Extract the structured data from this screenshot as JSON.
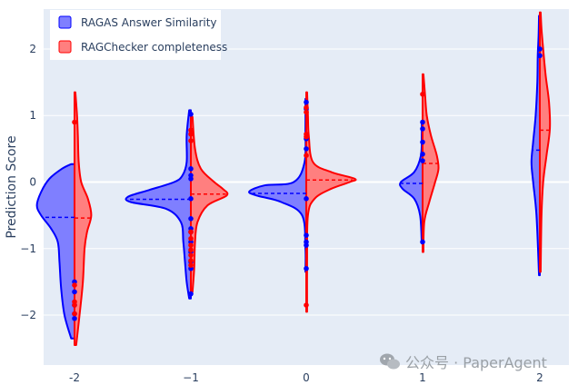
{
  "chart_data": {
    "type": "violin",
    "ylabel": "Prediction Score",
    "ylim": [
      -2.75,
      2.6
    ],
    "x_categories": [
      "-2",
      "−1",
      "0",
      "1",
      "2"
    ],
    "y_ticks": [
      "−2",
      "−1",
      "0",
      "1",
      "2"
    ],
    "y_tick_values": [
      -2,
      -1,
      0,
      1,
      2
    ],
    "grid": true,
    "legend_position": "top-left",
    "colors": {
      "plot_bg": "#e5ecf6",
      "grid": "#ffffff",
      "ragas_line": "#0000ff",
      "ragas_fill": "#7f7fff",
      "ragchecker_line": "#ff0000",
      "ragchecker_fill": "#ff7f7f"
    },
    "series": [
      {
        "name": "RAGAS Answer Similarity",
        "side": "negative",
        "groups": [
          {
            "x": -2,
            "mean": -0.53,
            "range": [
              -2.35,
              0.27
            ],
            "density": [
              [
                -2.35,
                0.04
              ],
              [
                -2.0,
                0.12
              ],
              [
                -1.6,
                0.16
              ],
              [
                -1.2,
                0.18
              ],
              [
                -0.9,
                0.2
              ],
              [
                -0.7,
                0.28
              ],
              [
                -0.5,
                0.4
              ],
              [
                -0.35,
                0.45
              ],
              [
                -0.15,
                0.4
              ],
              [
                0.05,
                0.3
              ],
              [
                0.2,
                0.15
              ],
              [
                0.27,
                0.04
              ]
            ],
            "points": [
              -1.5,
              -1.65,
              -1.85,
              -1.98,
              -2.05
            ]
          },
          {
            "x": -1,
            "mean": -0.26,
            "range": [
              -1.75,
              1.08
            ],
            "density": [
              [
                -1.75,
                0.02
              ],
              [
                -1.5,
                0.05
              ],
              [
                -1.2,
                0.07
              ],
              [
                -0.9,
                0.09
              ],
              [
                -0.6,
                0.12
              ],
              [
                -0.4,
                0.3
              ],
              [
                -0.3,
                0.72
              ],
              [
                -0.22,
                0.75
              ],
              [
                -0.12,
                0.5
              ],
              [
                0.0,
                0.2
              ],
              [
                0.1,
                0.1
              ],
              [
                0.3,
                0.05
              ],
              [
                0.7,
                0.05
              ],
              [
                1.08,
                0.02
              ]
            ],
            "points": [
              1.02,
              0.2,
              0.1,
              0.05,
              -0.25,
              -0.55,
              -0.7,
              -0.75,
              -0.9,
              -1.05,
              -1.2,
              -1.3,
              -1.68
            ]
          },
          {
            "x": 0,
            "mean": -0.17,
            "range": [
              -1.35,
              1.25
            ],
            "density": [
              [
                -1.35,
                0.01
              ],
              [
                -1.0,
                0.01
              ],
              [
                -0.5,
                0.05
              ],
              [
                -0.3,
                0.3
              ],
              [
                -0.2,
                0.6
              ],
              [
                -0.14,
                0.68
              ],
              [
                -0.05,
                0.5
              ],
              [
                0.0,
                0.15
              ],
              [
                0.3,
                0.02
              ],
              [
                0.8,
                0.01
              ],
              [
                1.25,
                0.01
              ]
            ],
            "points": [
              1.2,
              1.1,
              0.65,
              0.5,
              -0.25,
              -0.8,
              -0.9,
              -0.95,
              -1.3
            ]
          },
          {
            "x": 1,
            "mean": -0.02,
            "range": [
              -0.92,
              0.92
            ],
            "density": [
              [
                -0.92,
                0.01
              ],
              [
                -0.5,
                0.03
              ],
              [
                -0.25,
                0.1
              ],
              [
                -0.1,
                0.24
              ],
              [
                0.0,
                0.26
              ],
              [
                0.15,
                0.1
              ],
              [
                0.4,
                0.02
              ],
              [
                0.7,
                0.01
              ],
              [
                0.92,
                0.01
              ]
            ],
            "points": [
              0.9,
              0.8,
              0.6,
              0.42,
              0.32,
              -0.9
            ]
          },
          {
            "x": 2,
            "mean": 0.48,
            "range": [
              -1.4,
              2.5
            ],
            "density": [
              [
                -1.4,
                0.01
              ],
              [
                -0.5,
                0.04
              ],
              [
                0.0,
                0.08
              ],
              [
                0.3,
                0.1
              ],
              [
                0.6,
                0.08
              ],
              [
                1.0,
                0.05
              ],
              [
                1.5,
                0.03
              ],
              [
                1.9,
                0.025
              ],
              [
                2.2,
                0.015
              ],
              [
                2.5,
                0.01
              ]
            ],
            "points": [
              2.0,
              1.9
            ]
          }
        ]
      },
      {
        "name": "RAGChecker completeness",
        "side": "positive",
        "groups": [
          {
            "x": -2,
            "mean": -0.54,
            "range": [
              -2.45,
              1.35
            ],
            "density": [
              [
                -2.45,
                0.02
              ],
              [
                -2.0,
                0.06
              ],
              [
                -1.5,
                0.1
              ],
              [
                -1.0,
                0.12
              ],
              [
                -0.75,
                0.15
              ],
              [
                -0.5,
                0.2
              ],
              [
                -0.25,
                0.16
              ],
              [
                0.0,
                0.08
              ],
              [
                0.3,
                0.05
              ],
              [
                0.7,
                0.04
              ],
              [
                1.0,
                0.03
              ],
              [
                1.35,
                0.01
              ]
            ],
            "points": [
              0.9,
              -1.55,
              -1.8,
              -1.85,
              -1.98
            ]
          },
          {
            "x": -1,
            "mean": -0.18,
            "range": [
              -1.65,
              0.98
            ],
            "density": [
              [
                -1.65,
                0.02
              ],
              [
                -1.3,
                0.04
              ],
              [
                -0.9,
                0.05
              ],
              [
                -0.6,
                0.08
              ],
              [
                -0.35,
                0.2
              ],
              [
                -0.2,
                0.43
              ],
              [
                -0.1,
                0.38
              ],
              [
                0.0,
                0.28
              ],
              [
                0.2,
                0.12
              ],
              [
                0.5,
                0.05
              ],
              [
                0.98,
                0.02
              ]
            ],
            "points": [
              0.78,
              0.72,
              0.62,
              -0.75,
              -0.85,
              -0.95,
              -1.02,
              -1.1,
              -1.18,
              -1.25
            ]
          },
          {
            "x": 0,
            "mean": 0.03,
            "range": [
              -1.95,
              1.35
            ],
            "density": [
              [
                -1.95,
                0.01
              ],
              [
                -1.2,
                0.01
              ],
              [
                -0.5,
                0.02
              ],
              [
                -0.25,
                0.1
              ],
              [
                -0.1,
                0.3
              ],
              [
                0.0,
                0.52
              ],
              [
                0.05,
                0.58
              ],
              [
                0.15,
                0.3
              ],
              [
                0.3,
                0.08
              ],
              [
                0.7,
                0.03
              ],
              [
                1.0,
                0.02
              ],
              [
                1.35,
                0.01
              ]
            ],
            "points": [
              1.12,
              1.05,
              0.72,
              0.68,
              0.4,
              -1.85
            ]
          },
          {
            "x": 1,
            "mean": 0.28,
            "range": [
              -1.05,
              1.62
            ],
            "density": [
              [
                -1.05,
                0.01
              ],
              [
                -0.6,
                0.02
              ],
              [
                -0.3,
                0.08
              ],
              [
                0.0,
                0.15
              ],
              [
                0.2,
                0.19
              ],
              [
                0.4,
                0.17
              ],
              [
                0.7,
                0.1
              ],
              [
                1.0,
                0.05
              ],
              [
                1.3,
                0.03
              ],
              [
                1.62,
                0.01
              ]
            ],
            "points": [
              1.32
            ]
          },
          {
            "x": 2,
            "mean": 0.78,
            "range": [
              -1.35,
              2.55
            ],
            "density": [
              [
                -1.35,
                0.01
              ],
              [
                -0.5,
                0.02
              ],
              [
                0.0,
                0.04
              ],
              [
                0.4,
                0.08
              ],
              [
                0.8,
                0.12
              ],
              [
                1.2,
                0.11
              ],
              [
                1.6,
                0.07
              ],
              [
                2.0,
                0.04
              ],
              [
                2.3,
                0.02
              ],
              [
                2.55,
                0.01
              ]
            ],
            "points": []
          }
        ]
      }
    ]
  },
  "watermark": {
    "text": "公众号 · PaperAgent",
    "icon": "wechat-icon"
  }
}
